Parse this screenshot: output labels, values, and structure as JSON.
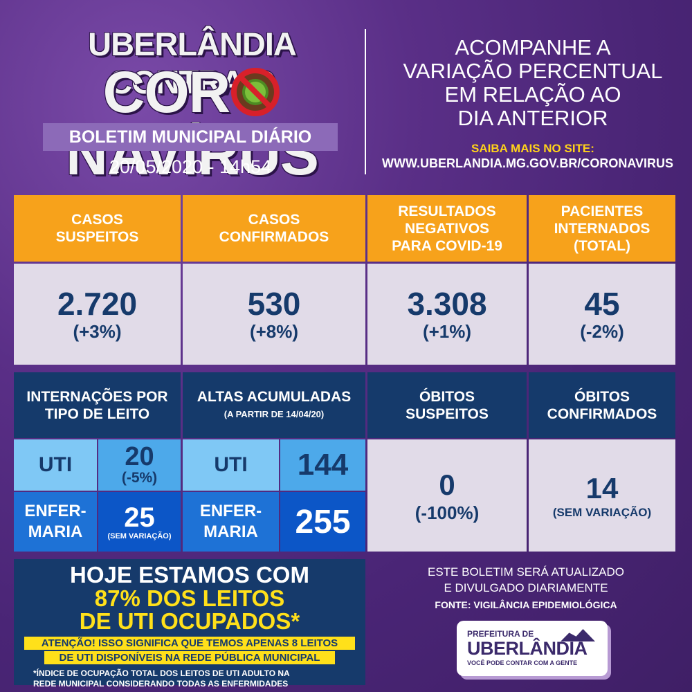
{
  "header": {
    "title_line1": "UBERLÂNDIA CONTRA O",
    "title_line2_a": "COR",
    "title_line2_b": "NAVÍRUS",
    "subtitle": "BOLETIM MUNICIPAL DIÁRIO",
    "date": "20/05/2020 - 14h54",
    "right_heading": [
      "ACOMPANHE A",
      "VARIAÇÃO PERCENTUAL",
      "EM RELAÇÃO AO",
      "DIA ANTERIOR"
    ],
    "saiba": "SAIBA MAIS NO SITE:",
    "site": "WWW.UBERLANDIA.MG.GOV.BR/CORONAVIRUS"
  },
  "top_stats": [
    {
      "label": [
        "CASOS",
        "SUSPEITOS"
      ],
      "value": "2.720",
      "change": "(+3%)"
    },
    {
      "label": [
        "CASOS",
        "CONFIRMADOS"
      ],
      "value": "530",
      "change": "(+8%)"
    },
    {
      "label": [
        "RESULTADOS",
        "NEGATIVOS",
        "PARA COVID-19"
      ],
      "value": "3.308",
      "change": "(+1%)"
    },
    {
      "label": [
        "PACIENTES",
        "INTERNADOS",
        "(TOTAL)"
      ],
      "value": "45",
      "change": "(-2%)"
    }
  ],
  "internacoes": {
    "label": [
      "INTERNAÇÕES POR",
      "TIPO DE LEITO"
    ],
    "uti_label": "UTI",
    "uti_value": "20",
    "uti_change": "(-5%)",
    "enf_label": [
      "ENFER-",
      "MARIA"
    ],
    "enf_value": "25",
    "enf_change": "(SEM VARIAÇÃO)"
  },
  "altas": {
    "label": "ALTAS ACUMULADAS",
    "sublabel": "(A PARTIR DE 14/04/20)",
    "uti_label": "UTI",
    "uti_value": "144",
    "enf_label": [
      "ENFER-",
      "MARIA"
    ],
    "enf_value": "255"
  },
  "obitos_suspeitos": {
    "label": [
      "ÓBITOS",
      "SUSPEITOS"
    ],
    "value": "0",
    "change": "(-100%)"
  },
  "obitos_confirmados": {
    "label": [
      "ÓBITOS",
      "CONFIRMADOS"
    ],
    "value": "14",
    "change": "(SEM VARIAÇÃO)"
  },
  "hoje": {
    "line1": "HOJE ESTAMOS COM",
    "line2": "87% DOS LEITOS",
    "line3": "DE UTI OCUPADOS*",
    "warn1": "ATENÇÃO! ISSO SIGNIFICA QUE TEMOS APENAS 8 LEITOS",
    "warn2": "DE UTI DISPONÍVEIS NA REDE PÚBLICA MUNICIPAL",
    "foot1": "*ÍNDICE DE OCUPAÇÃO TOTAL DOS LEITOS DE UTI ADULTO NA",
    "foot2": "REDE MUNICIPAL CONSIDERANDO TODAS AS ENFERMIDADES"
  },
  "footer": {
    "note1": "ESTE BOLETIM SERÁ ATUALIZADO",
    "note2": "E DIVULGADO DIARIAMENTE",
    "fonte": "FONTE: VIGILÂNCIA EPIDEMIOLÓGICA",
    "logo_l1": "PREFEITURA DE",
    "logo_l2": "UBERLÂNDIA",
    "logo_l3": "VOCÊ PODE CONTAR COM A GENTE"
  },
  "colors": {
    "orange": "#f7a21b",
    "navy": "#153a6b",
    "lavender": "#e1dbe8",
    "purple_bg": "#5a2f87",
    "yellow": "#ffe01a"
  },
  "icons": {
    "virus": "coronavirus-prohibited-icon"
  }
}
